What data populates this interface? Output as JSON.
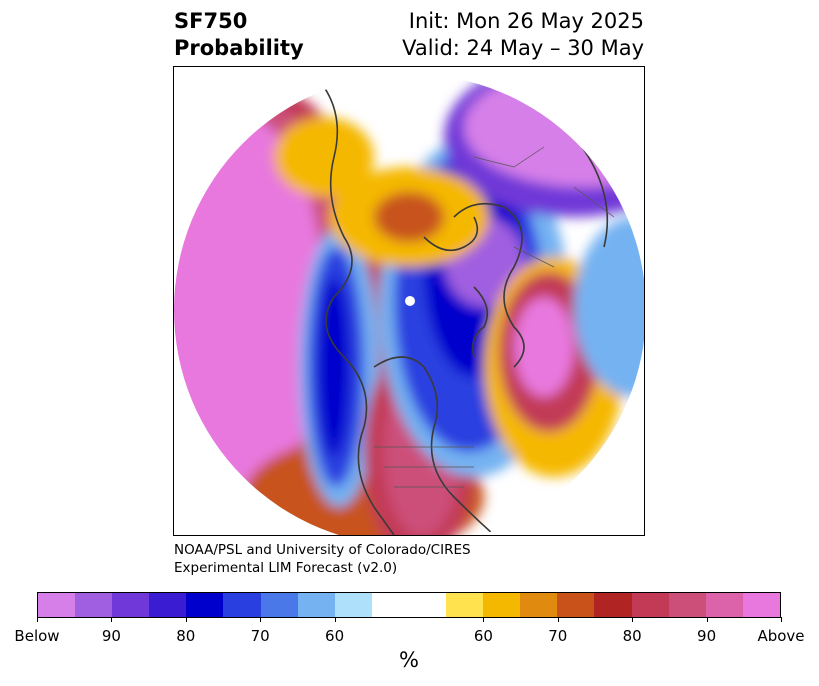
{
  "header": {
    "variable": "SF750",
    "product": "Probability",
    "init": "Init: Mon 26 May 2025",
    "valid": "Valid: 24 May – 30 May"
  },
  "credit": {
    "line1": "NOAA/PSL and University of Colorado/CIRES",
    "line2": "Experimental LIM Forecast (v2.0)"
  },
  "colorbar": {
    "unit": "%",
    "colors": [
      "#d67fe8",
      "#a05ee0",
      "#7038d8",
      "#3a1cd2",
      "#0000cc",
      "#2a3fe0",
      "#4a78e8",
      "#74b2f2",
      "#aee0fc",
      "#ffffff",
      "#ffffff",
      "#ffe24e",
      "#f5b800",
      "#e08a10",
      "#c8521a",
      "#b02424",
      "#c23a56",
      "#cc4f7a",
      "#dc62aa",
      "#e878de"
    ],
    "ticks": [
      "Below",
      "90",
      "80",
      "70",
      "60",
      "60",
      "70",
      "80",
      "90",
      "Above"
    ]
  }
}
